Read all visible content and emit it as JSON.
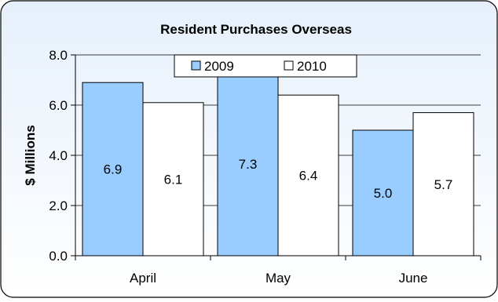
{
  "chart_data": {
    "type": "bar",
    "title": "Resident Purchases Overseas",
    "xlabel": "",
    "ylabel": "$ Millions",
    "categories": [
      "April",
      "May",
      "June"
    ],
    "series": [
      {
        "name": "2009",
        "values": [
          6.9,
          7.3,
          5.0
        ],
        "color": "#99ccff"
      },
      {
        "name": "2010",
        "values": [
          6.1,
          6.4,
          5.7
        ],
        "color": "#ffffff"
      }
    ],
    "ylim": [
      0,
      8
    ],
    "yticks": [
      "0.0",
      "2.0",
      "4.0",
      "6.0",
      "8.0"
    ],
    "data_labels": [
      [
        "6.9",
        "7.3",
        "5.0"
      ],
      [
        "6.1",
        "6.4",
        "5.7"
      ]
    ],
    "grid": true,
    "legend": "top-center",
    "colors": {
      "background_top": "#e6f0fb",
      "background_bottom": "#ffffff",
      "gridline": "#000000",
      "bar_outline": "#000000"
    }
  }
}
